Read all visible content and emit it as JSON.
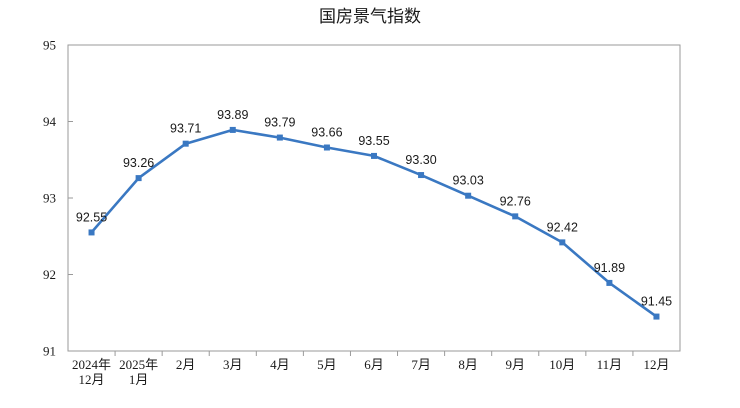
{
  "chart_data": {
    "type": "line",
    "title": "国房景气指数",
    "categories": [
      [
        "2024年",
        "12月"
      ],
      [
        "2025年",
        "1月"
      ],
      [
        "2月"
      ],
      [
        "3月"
      ],
      [
        "4月"
      ],
      [
        "5月"
      ],
      [
        "6月"
      ],
      [
        "7月"
      ],
      [
        "8月"
      ],
      [
        "9月"
      ],
      [
        "10月"
      ],
      [
        "11月"
      ],
      [
        "12月"
      ]
    ],
    "series": [
      {
        "values": [
          92.55,
          93.26,
          93.71,
          93.89,
          93.79,
          93.66,
          93.55,
          93.3,
          93.03,
          92.76,
          92.42,
          91.89,
          91.45
        ],
        "labels": [
          "92.55",
          "93.26",
          "93.71",
          "93.89",
          "93.79",
          "93.66",
          "93.55",
          "93.30",
          "93.03",
          "92.76",
          "92.42",
          "91.89",
          "91.45"
        ],
        "color": "#3a78c2"
      }
    ],
    "ylim": [
      91,
      95
    ],
    "yticks": [
      "91",
      "92",
      "93",
      "94",
      "95"
    ],
    "grid": false,
    "legend": "none"
  }
}
